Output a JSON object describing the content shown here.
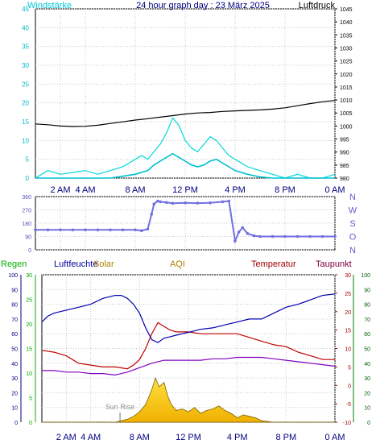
{
  "chart_data": [
    {
      "type": "line",
      "title": "24 hour graph day : 23 März 2025",
      "left_axis_label": "Windstärke",
      "right_axis_label": "Luftdruck",
      "left_ylim": [
        0,
        45
      ],
      "left_ticks": [
        "0",
        "5",
        "10",
        "15",
        "20",
        "25",
        "30",
        "35",
        "40",
        "45"
      ],
      "right_ylim": [
        980,
        1045
      ],
      "right_ticks": [
        "980",
        "985",
        "990",
        "995",
        "1000",
        "1005",
        "1010",
        "1015",
        "1020",
        "1025",
        "1030",
        "1035",
        "1040",
        "1045"
      ],
      "x_ticks": [
        "2 AM",
        "4 AM",
        "8 AM",
        "12 PM",
        "4 PM",
        "8 PM",
        "0 AM"
      ],
      "x_tick_hours": [
        2,
        4,
        8,
        12,
        16,
        20,
        24
      ],
      "grid": true,
      "colors": {
        "wind": "#00e0e0",
        "gust": "#00d8d8",
        "pressure": "#000000",
        "axis_label": "#00c8d8"
      },
      "series": [
        {
          "axis": "right",
          "x": [
            0,
            1,
            2,
            3,
            4,
            5,
            6,
            7,
            8,
            9,
            10,
            11,
            12,
            13,
            14,
            15,
            16,
            17,
            18,
            19,
            20,
            21,
            22,
            23,
            24
          ],
          "values": [
            1000.8,
            1000.5,
            1000.0,
            999.8,
            999.9,
            1000.3,
            1001.0,
            1001.6,
            1002.3,
            1002.8,
            1003.4,
            1004.0,
            1004.6,
            1005.0,
            1005.2,
            1005.6,
            1005.8,
            1006.0,
            1006.2,
            1006.5,
            1007.0,
            1007.8,
            1008.6,
            1009.3,
            1009.8
          ]
        },
        {
          "axis": "left",
          "x": [
            0,
            1,
            2,
            3,
            4,
            5,
            6,
            7,
            8,
            9,
            9.5,
            10,
            10.5,
            11,
            11.5,
            12,
            12.5,
            13,
            13.5,
            14,
            14.5,
            15,
            15.5,
            16,
            17,
            18,
            19,
            20,
            21,
            22,
            23,
            24
          ],
          "values": [
            0,
            0,
            0,
            0,
            0,
            0,
            0,
            0.5,
            1.0,
            2.0,
            3.5,
            4.5,
            5.5,
            6.5,
            5.5,
            4.5,
            3.5,
            3.0,
            3.5,
            4.5,
            5.0,
            4.0,
            3.0,
            2.0,
            1.0,
            0.3,
            0,
            0,
            0,
            0,
            0,
            0
          ]
        },
        {
          "axis": "left",
          "x": [
            0,
            1,
            2,
            3,
            4,
            5,
            6,
            7,
            8,
            8.5,
            9,
            9.5,
            10,
            10.5,
            11,
            11.5,
            12,
            12.5,
            13,
            13.5,
            14,
            14.5,
            15,
            15.5,
            16,
            16.5,
            17,
            18,
            19,
            20,
            21,
            22,
            23,
            24
          ],
          "values": [
            0,
            2,
            1,
            1.5,
            2,
            1,
            2,
            3,
            5,
            6,
            5,
            7,
            9,
            12,
            16,
            14,
            10,
            8,
            7,
            9,
            11,
            10,
            8,
            6,
            5,
            4,
            3,
            2,
            1,
            0,
            1,
            0,
            0,
            1
          ]
        }
      ]
    },
    {
      "type": "line",
      "right_axis_letters": [
        "N",
        "W",
        "S",
        "O",
        "N"
      ],
      "ylim": [
        0,
        360
      ],
      "ticks": [
        "0",
        "90",
        "180",
        "270",
        "360"
      ],
      "x_ticks": [
        "2 AM",
        "4 AM",
        "8 AM",
        "12 PM",
        "4 PM",
        "8 PM",
        "0 AM"
      ],
      "x_tick_hours": [
        2,
        4,
        8,
        12,
        16,
        20,
        24
      ],
      "grid": true,
      "colors": {
        "direction": "#7070e0"
      },
      "series": [
        {
          "x": [
            0,
            1,
            2,
            3,
            4,
            5,
            6,
            7,
            8,
            8.5,
            9,
            9.3,
            9.5,
            9.8,
            10,
            10.5,
            11,
            12,
            13,
            14,
            15,
            15.5,
            16,
            16.3,
            16.6,
            17,
            17.5,
            18,
            19,
            20,
            21,
            22,
            23,
            24
          ],
          "values": [
            135,
            135,
            135,
            135,
            135,
            135,
            135,
            135,
            135,
            130,
            140,
            240,
            310,
            330,
            325,
            320,
            315,
            318,
            316,
            318,
            325,
            330,
            60,
            120,
            150,
            110,
            95,
            90,
            90,
            90,
            90,
            90,
            90,
            90
          ]
        }
      ]
    },
    {
      "type": "line",
      "legend": [
        "Regen",
        "Luftfeuchte",
        "Solar",
        "AQI",
        "Temperatur",
        "Taupunkt"
      ],
      "legend_colors": [
        "#00b000",
        "#0000a0",
        "#b08000",
        "#b08000",
        "#a00000",
        "#800040"
      ],
      "humidity_ylim": [
        0,
        100
      ],
      "humidity_ticks": [
        "0",
        "10",
        "20",
        "30",
        "40",
        "50",
        "60",
        "70",
        "80",
        "90",
        "100"
      ],
      "rain_ylim": [
        0,
        30
      ],
      "rain_ticks": [
        "0",
        "5",
        "10",
        "15",
        "20",
        "25",
        "30"
      ],
      "temperature_ylim": [
        -10,
        30
      ],
      "temperature_ticks": [
        "-10",
        "-5",
        "0",
        "5",
        "10",
        "15",
        "20",
        "25",
        "30"
      ],
      "dewpoint_ylim": [
        0,
        100
      ],
      "dewpoint_ticks": [
        "0",
        "10",
        "20",
        "30",
        "40",
        "50",
        "60",
        "70",
        "80",
        "90",
        "100"
      ],
      "annotations": [
        "Sun Rise"
      ],
      "annotation_hour": 6.4,
      "x_ticks": [
        "2 AM",
        "4 AM",
        "8 AM",
        "12 PM",
        "4 PM",
        "8 PM",
        "0 AM"
      ],
      "x_tick_hours": [
        2,
        4,
        8,
        12,
        16,
        20,
        24
      ],
      "grid": true,
      "colors": {
        "humidity": "#0000b0",
        "temperature": "#c00000",
        "dewpoint": "#8000c0",
        "solar_fill": "#f0b000",
        "solar_fill_top": "#ffe040"
      },
      "series": [
        {
          "axis": "humidity",
          "x": [
            0,
            0.5,
            1,
            2,
            3,
            4,
            5,
            6,
            6.5,
            7,
            7.5,
            8,
            8.5,
            9,
            9.5,
            10,
            10.5,
            11,
            12,
            13,
            14,
            15,
            16,
            17,
            18,
            19,
            20,
            21,
            22,
            23,
            24
          ],
          "values": [
            68,
            72,
            74,
            76,
            78,
            80,
            84,
            86,
            86,
            84,
            80,
            74,
            64,
            56,
            54,
            57,
            58,
            59,
            61,
            63,
            64,
            66,
            68,
            70,
            70,
            74,
            78,
            80,
            83,
            86,
            87
          ]
        },
        {
          "axis": "temperature",
          "x": [
            0,
            1,
            2,
            3,
            4,
            5,
            6,
            7,
            7.5,
            8,
            8.5,
            9,
            9.5,
            10,
            10.5,
            11,
            12,
            13,
            14,
            15,
            16,
            17,
            18,
            19,
            20,
            21,
            22,
            23,
            24
          ],
          "values": [
            9.5,
            9.0,
            8.0,
            6.0,
            5.5,
            5.0,
            5.0,
            4.5,
            5.5,
            7.0,
            10.0,
            14.0,
            17.0,
            16.0,
            15.0,
            14.5,
            14.5,
            14.0,
            14.0,
            14.0,
            14.0,
            13.0,
            12.0,
            11.0,
            10.5,
            9.0,
            8.0,
            7.0,
            7.0
          ]
        },
        {
          "axis": "dewpoint",
          "x": [
            0,
            1,
            2,
            3,
            4,
            5,
            6,
            7,
            8,
            9,
            10,
            11,
            12,
            13,
            14,
            15,
            16,
            17,
            18,
            19,
            20,
            21,
            22,
            23,
            24
          ],
          "values": [
            35,
            35,
            34,
            34,
            33,
            33,
            32,
            34,
            37,
            40,
            42,
            42,
            42,
            42,
            43,
            43,
            44,
            44,
            44,
            43,
            42,
            41,
            40,
            39,
            38
          ]
        },
        {
          "axis": "humidity",
          "type": "area",
          "x": [
            0,
            6,
            7,
            7.5,
            8,
            8.5,
            9,
            9.3,
            9.6,
            10,
            10.3,
            10.6,
            11,
            11.5,
            12,
            12.5,
            13,
            13.5,
            14,
            14.5,
            15,
            15.5,
            16,
            16.5,
            17,
            17.5,
            18,
            18.5,
            19,
            24
          ],
          "values": [
            0,
            0,
            2,
            4,
            7,
            12,
            22,
            30,
            24,
            27,
            18,
            12,
            8,
            9,
            7,
            10,
            6,
            8,
            9,
            11,
            8,
            6,
            3,
            5,
            4,
            3,
            1,
            0.5,
            0,
            0
          ]
        }
      ]
    }
  ]
}
